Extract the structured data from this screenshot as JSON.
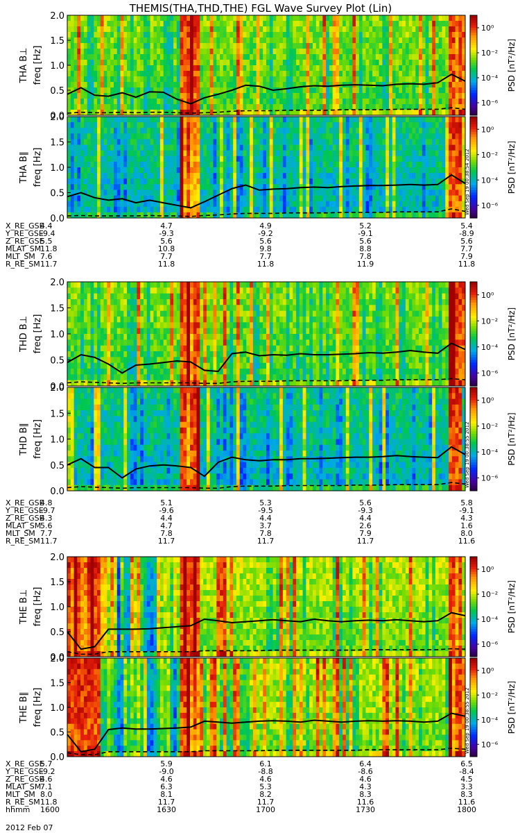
{
  "chart_data": {
    "type": "heatmap",
    "title": "THEMIS(THA,THD,THE) FGL Wave Survey Plot (Lin)",
    "ylabel_unit": "freq [Hz]",
    "ylim": [
      0,
      2.0
    ],
    "yticks": [
      "0.0",
      "0.5",
      "1.0",
      "1.5",
      "2.0"
    ],
    "colorbar": {
      "label": "PSD [nT²/Hz]",
      "log_range": [
        -7,
        1
      ],
      "ticks": [
        {
          "exp": 0,
          "text": "10⁰"
        },
        {
          "exp": -2,
          "text": "10⁻²"
        },
        {
          "exp": -4,
          "text": "10⁻⁴"
        },
        {
          "exp": -6,
          "text": "10⁻⁶"
        }
      ]
    },
    "stamps": [
      "Wed Sep 19 00:38:54 2012",
      "Wed Sep 19 00:38:55 2012",
      "Wed Sep 19 00:38:55 2012"
    ],
    "probes": [
      {
        "panels": [
          {
            "label": "THA B⊥",
            "upper_curve": [
              0.42,
              0.55,
              0.4,
              0.38,
              0.45,
              0.36,
              0.47,
              0.46,
              0.32,
              0.23,
              0.35,
              0.42,
              0.5,
              0.6,
              0.58,
              0.5,
              0.53,
              0.57,
              0.59,
              0.58,
              0.6,
              0.61,
              0.6,
              0.59,
              0.62,
              0.63,
              0.62,
              0.65,
              0.82,
              0.68
            ],
            "lower_curve": [
              0.04,
              0.06,
              0.05,
              0.05,
              0.06,
              0.05,
              0.06,
              0.06,
              0.05,
              0.04,
              0.05,
              0.06,
              0.08,
              0.09,
              0.09,
              0.09,
              0.1,
              0.1,
              0.1,
              0.1,
              0.11,
              0.11,
              0.11,
              0.11,
              0.12,
              0.12,
              0.12,
              0.12,
              0.15,
              0.12
            ]
          },
          {
            "label": "THA B∥",
            "upper_curve": [
              0.42,
              0.5,
              0.4,
              0.35,
              0.38,
              0.3,
              0.35,
              0.3,
              0.25,
              0.2,
              0.32,
              0.45,
              0.58,
              0.65,
              0.55,
              0.57,
              0.58,
              0.6,
              0.61,
              0.6,
              0.62,
              0.63,
              0.64,
              0.64,
              0.65,
              0.66,
              0.65,
              0.66,
              0.85,
              0.68
            ],
            "lower_curve": [
              0.04,
              0.05,
              0.04,
              0.04,
              0.04,
              0.04,
              0.05,
              0.04,
              0.04,
              0.03,
              0.05,
              0.06,
              0.08,
              0.09,
              0.09,
              0.09,
              0.1,
              0.1,
              0.1,
              0.1,
              0.11,
              0.11,
              0.11,
              0.11,
              0.12,
              0.12,
              0.12,
              0.12,
              0.18,
              0.13
            ]
          }
        ],
        "x_labels": [
          "X_RE_GSE",
          "Y_RE_GSE",
          "Z_RE_GSE",
          "MLAT_SM",
          "MLT_SM",
          "R_RE_SM"
        ],
        "x_values": [
          [
            "4.4",
            "4.7",
            "4.9",
            "5.2",
            "5.4"
          ],
          [
            "-9.4",
            "-9.3",
            "-9.2",
            "-9.1",
            "-8.9"
          ],
          [
            "5.5",
            "5.6",
            "5.6",
            "5.6",
            "5.6"
          ],
          [
            "11.8",
            "10.8",
            "9.8",
            "8.8",
            "7.7"
          ],
          [
            "7.6",
            "7.7",
            "7.7",
            "7.8",
            "7.9"
          ],
          [
            "11.7",
            "11.8",
            "11.8",
            "11.9",
            "11.8"
          ]
        ]
      },
      {
        "panels": [
          {
            "label": "THD B⊥",
            "upper_curve": [
              0.45,
              0.6,
              0.55,
              0.42,
              0.25,
              0.4,
              0.42,
              0.45,
              0.48,
              0.46,
              0.3,
              0.28,
              0.62,
              0.65,
              0.58,
              0.6,
              0.59,
              0.62,
              0.6,
              0.6,
              0.61,
              0.62,
              0.64,
              0.63,
              0.65,
              0.68,
              0.65,
              0.63,
              0.82,
              0.7
            ],
            "lower_curve": [
              0.06,
              0.08,
              0.07,
              0.06,
              0.05,
              0.06,
              0.06,
              0.06,
              0.06,
              0.06,
              0.05,
              0.05,
              0.08,
              0.09,
              0.09,
              0.09,
              0.1,
              0.1,
              0.1,
              0.1,
              0.1,
              0.11,
              0.11,
              0.11,
              0.12,
              0.12,
              0.12,
              0.12,
              0.14,
              0.12
            ]
          },
          {
            "label": "THD B∥",
            "upper_curve": [
              0.5,
              0.62,
              0.45,
              0.45,
              0.25,
              0.42,
              0.48,
              0.5,
              0.48,
              0.45,
              0.28,
              0.55,
              0.65,
              0.6,
              0.58,
              0.6,
              0.6,
              0.62,
              0.62,
              0.63,
              0.64,
              0.65,
              0.65,
              0.66,
              0.68,
              0.66,
              0.65,
              0.64,
              0.85,
              0.7
            ],
            "lower_curve": [
              0.06,
              0.08,
              0.07,
              0.06,
              0.05,
              0.06,
              0.06,
              0.06,
              0.06,
              0.06,
              0.05,
              0.05,
              0.08,
              0.09,
              0.09,
              0.09,
              0.1,
              0.1,
              0.1,
              0.1,
              0.1,
              0.11,
              0.11,
              0.11,
              0.12,
              0.12,
              0.12,
              0.12,
              0.16,
              0.13
            ]
          }
        ],
        "x_labels": [
          "X_RE_GSE",
          "Y_RE_GSE",
          "Z_RE_GSE",
          "MLAT_SM",
          "MLT_SM",
          "R_RE_SM"
        ],
        "x_values": [
          [
            "4.8",
            "5.1",
            "5.3",
            "5.6",
            "5.8"
          ],
          [
            "-9.7",
            "-9.6",
            "-9.5",
            "-9.3",
            "-9.1"
          ],
          [
            "4.3",
            "4.4",
            "4.4",
            "4.4",
            "4.3"
          ],
          [
            "5.6",
            "4.7",
            "3.7",
            "2.6",
            "1.6"
          ],
          [
            "7.7",
            "7.8",
            "7.8",
            "7.9",
            "8.0"
          ],
          [
            "11.7",
            "11.7",
            "11.7",
            "11.7",
            "11.6"
          ]
        ]
      },
      {
        "panels": [
          {
            "label": "THE B⊥",
            "upper_curve": [
              0.5,
              0.15,
              0.2,
              0.55,
              0.55,
              0.55,
              0.56,
              0.58,
              0.6,
              0.62,
              0.75,
              0.72,
              0.68,
              0.7,
              0.72,
              0.74,
              0.72,
              0.7,
              0.75,
              0.72,
              0.7,
              0.72,
              0.73,
              0.72,
              0.74,
              0.72,
              0.7,
              0.72,
              0.88,
              0.82
            ],
            "lower_curve": [
              0.1,
              0.05,
              0.05,
              0.1,
              0.1,
              0.1,
              0.1,
              0.1,
              0.1,
              0.1,
              0.12,
              0.12,
              0.12,
              0.12,
              0.12,
              0.13,
              0.13,
              0.13,
              0.13,
              0.13,
              0.13,
              0.13,
              0.14,
              0.14,
              0.14,
              0.14,
              0.14,
              0.14,
              0.16,
              0.15
            ]
          },
          {
            "label": "THE B∥",
            "upper_curve": [
              0.45,
              0.1,
              0.15,
              0.55,
              0.58,
              0.56,
              0.56,
              0.57,
              0.58,
              0.6,
              0.72,
              0.7,
              0.68,
              0.7,
              0.72,
              0.73,
              0.72,
              0.7,
              0.74,
              0.72,
              0.7,
              0.72,
              0.73,
              0.72,
              0.73,
              0.72,
              0.7,
              0.72,
              0.88,
              0.82
            ],
            "lower_curve": [
              0.08,
              0.04,
              0.04,
              0.1,
              0.1,
              0.1,
              0.1,
              0.1,
              0.1,
              0.1,
              0.12,
              0.12,
              0.12,
              0.12,
              0.12,
              0.13,
              0.13,
              0.13,
              0.13,
              0.13,
              0.13,
              0.13,
              0.14,
              0.14,
              0.14,
              0.14,
              0.14,
              0.14,
              0.17,
              0.15
            ]
          }
        ],
        "x_labels": [
          "X_RE_GSE",
          "Y_RE_GSE",
          "Z_RE_GSE",
          "MLAT_SM",
          "MLT_SM",
          "R_RE_SM",
          "hhmm"
        ],
        "x_values": [
          [
            "5.7",
            "5.9",
            "6.1",
            "6.4",
            "6.5"
          ],
          [
            "-9.2",
            "-9.0",
            "-8.8",
            "-8.6",
            "-8.4"
          ],
          [
            "4.6",
            "4.6",
            "4.6",
            "4.6",
            "4.5"
          ],
          [
            "7.1",
            "6.3",
            "5.3",
            "4.3",
            "3.3"
          ],
          [
            "8.0",
            "8.1",
            "8.2",
            "8.3",
            "8.3"
          ],
          [
            "11.8",
            "11.7",
            "11.7",
            "11.6",
            "11.6"
          ],
          [
            "1600",
            "1630",
            "1700",
            "1730",
            "1800"
          ]
        ]
      }
    ],
    "date_label": "2012 Feb 07"
  }
}
